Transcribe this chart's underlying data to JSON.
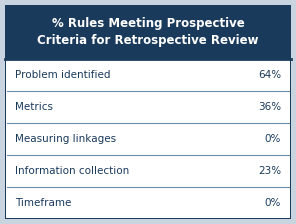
{
  "title": "% Rules Meeting Prospective\nCriteria for Retrospective Review",
  "header_bg": "#1a3a5c",
  "header_text_color": "#ffffff",
  "row_bg": "#ffffff",
  "row_text_color": "#1a3a5c",
  "border_color": "#1a3a5c",
  "divider_color": "#6b8cae",
  "rows": [
    [
      "Problem identified",
      "64%"
    ],
    [
      "Metrics",
      "36%"
    ],
    [
      "Measuring linkages",
      "0%"
    ],
    [
      "Information collection",
      "23%"
    ],
    [
      "Timeframe",
      "0%"
    ]
  ],
  "title_fontsize": 8.5,
  "row_fontsize": 7.5,
  "fig_bg": "#ffffff",
  "outer_bg": "#c8d4e0"
}
